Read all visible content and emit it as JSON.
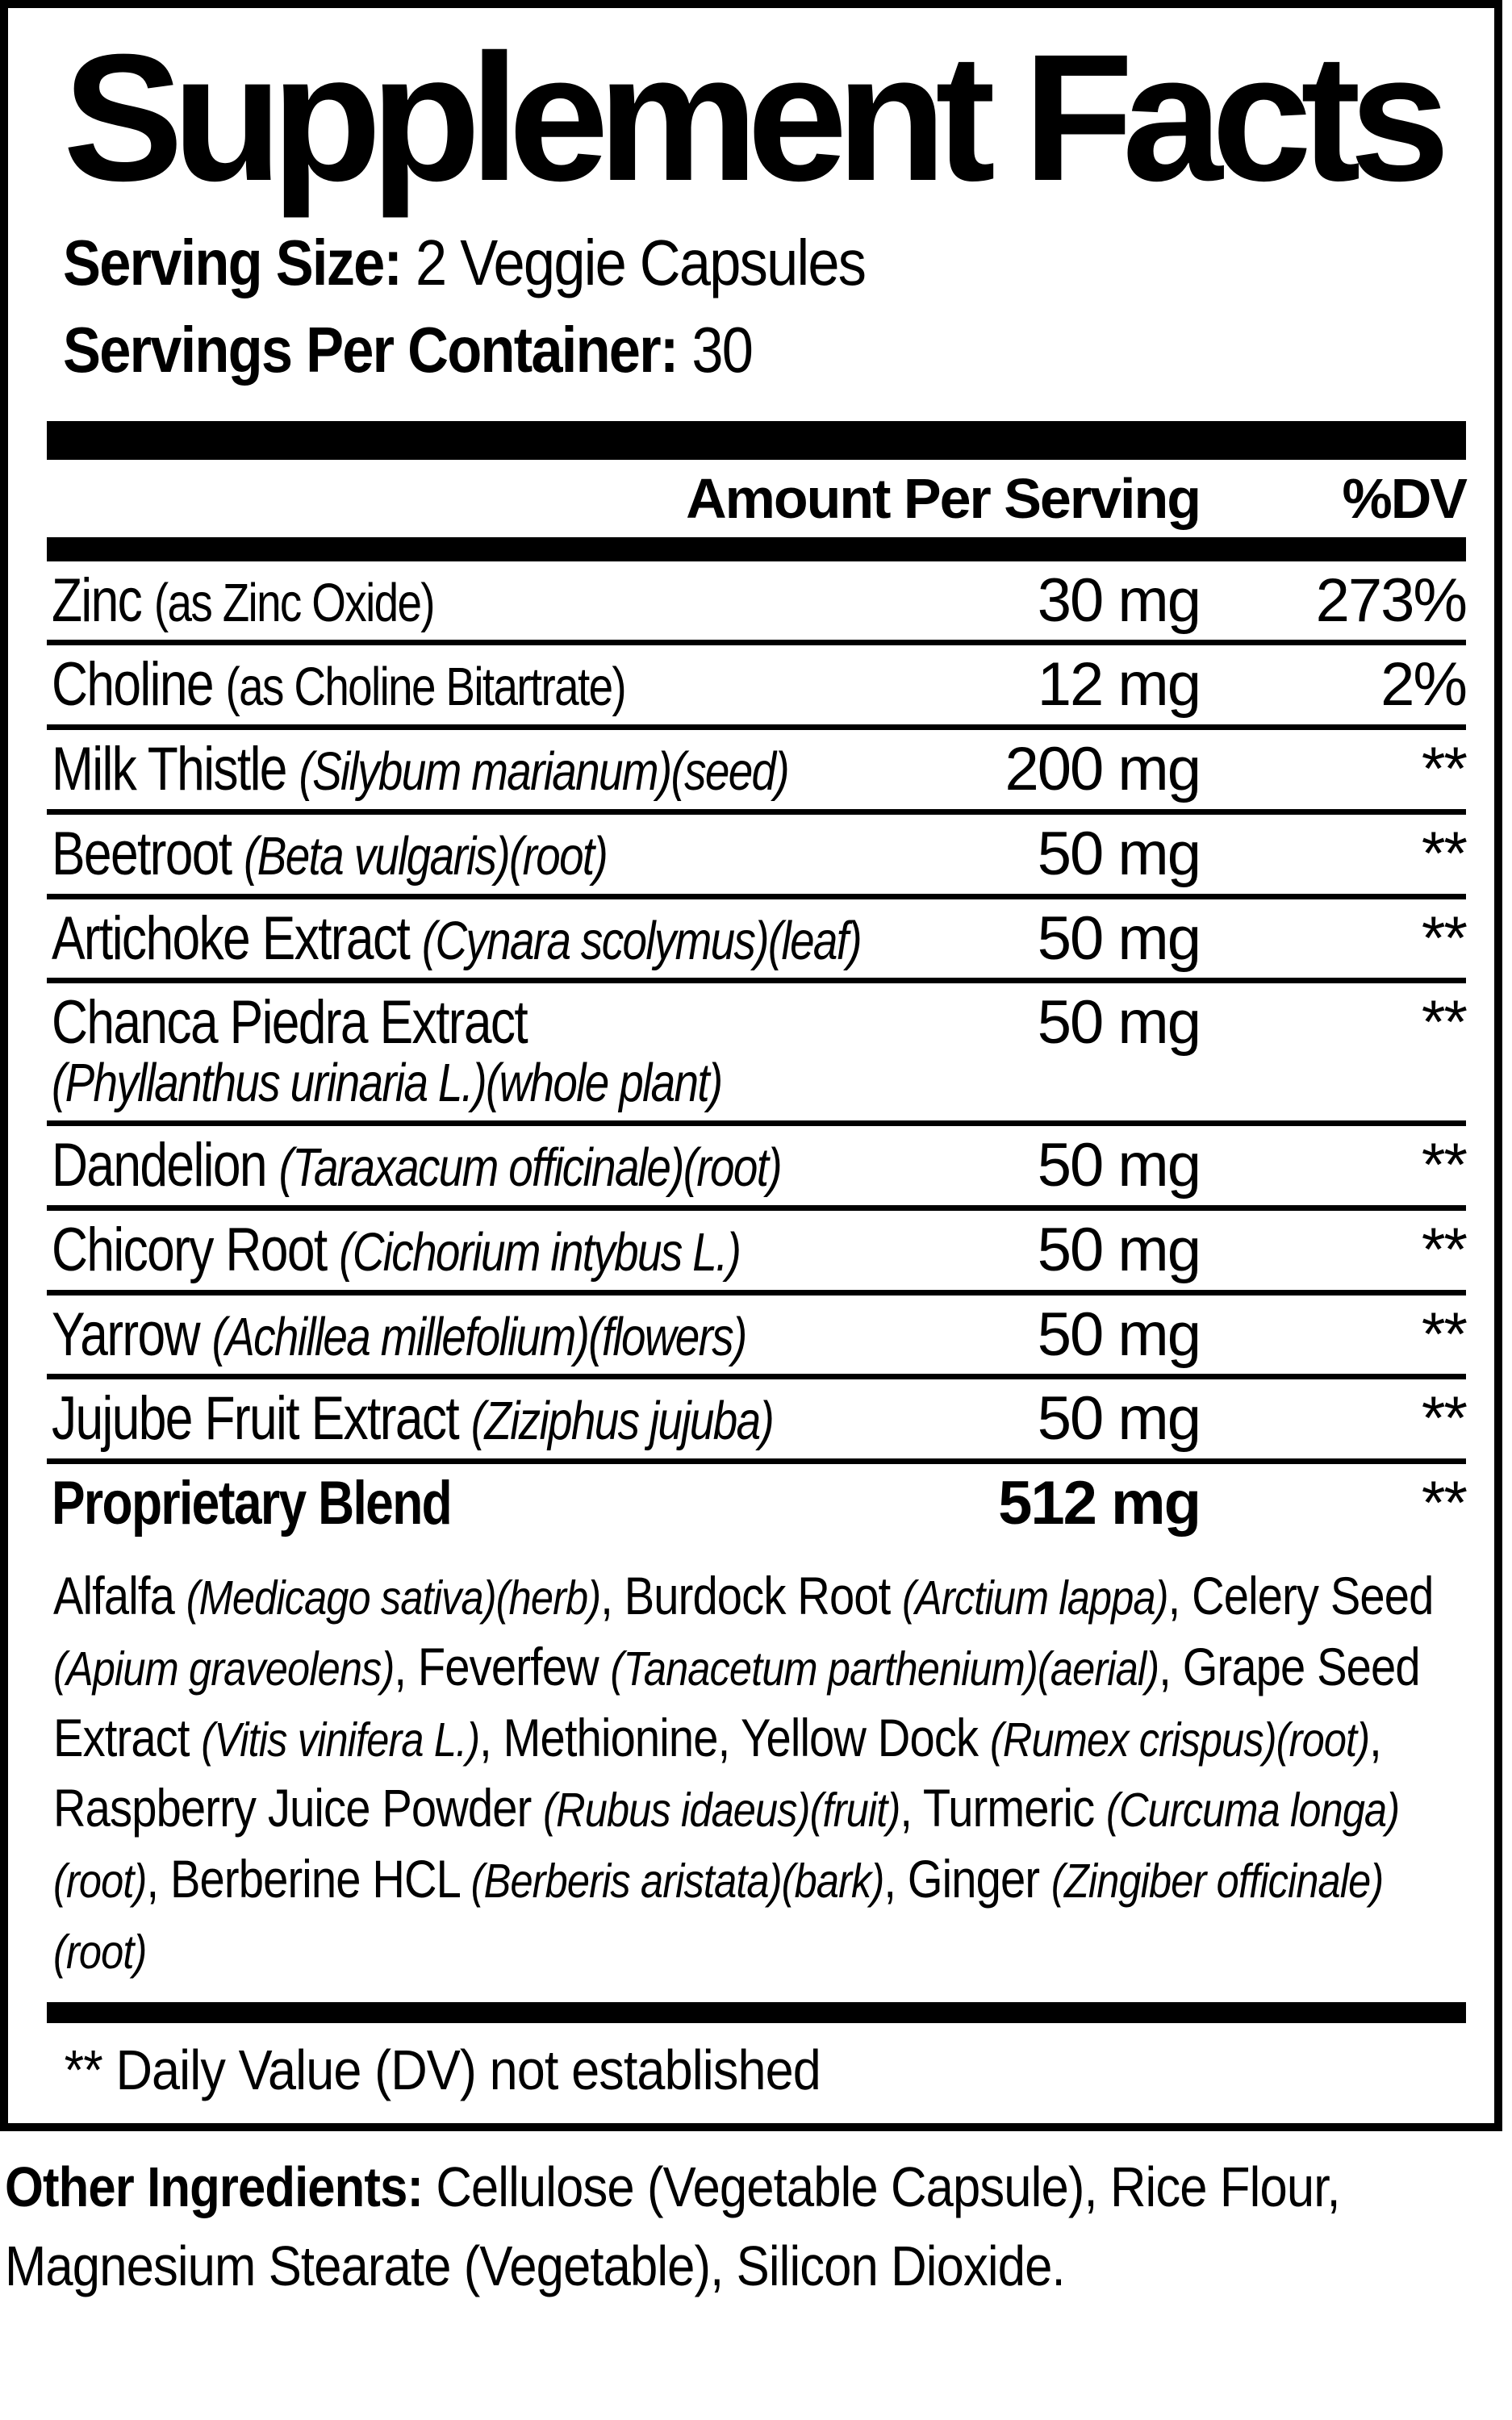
{
  "colors": {
    "ink": "#000000",
    "paper": "#ffffff"
  },
  "title": "Supplement Facts",
  "serving": {
    "size_label": "Serving Size:",
    "size_value": "2 Veggie Capsules",
    "servings_label": "Servings Per Container:",
    "servings_value": "30"
  },
  "columns": {
    "amount": "Amount Per Serving",
    "dv": "%DV"
  },
  "rows": [
    {
      "name": "Zinc",
      "latin": "(as Zinc Oxide)",
      "latin_italic": false,
      "latin_block": "",
      "amount": "30 mg",
      "dv": "273%",
      "bold": false
    },
    {
      "name": "Choline",
      "latin": "(as Choline Bitartrate)",
      "latin_italic": false,
      "latin_block": "",
      "amount": "12 mg",
      "dv": "2%",
      "bold": false
    },
    {
      "name": "Milk Thistle",
      "latin": "(Silybum marianum)(seed)",
      "latin_italic": true,
      "latin_block": "",
      "amount": "200 mg",
      "dv": "**",
      "bold": false
    },
    {
      "name": "Beetroot",
      "latin": "(Beta vulgaris)(root)",
      "latin_italic": true,
      "latin_block": "",
      "amount": "50 mg",
      "dv": "**",
      "bold": false
    },
    {
      "name": "Artichoke Extract",
      "latin": "(Cynara scolymus)(leaf)",
      "latin_italic": true,
      "latin_block": "",
      "amount": "50 mg",
      "dv": "**",
      "bold": false
    },
    {
      "name": "Chanca Piedra Extract",
      "latin": "",
      "latin_italic": true,
      "latin_block": "(Phyllanthus urinaria L.)(whole plant)",
      "amount": "50 mg",
      "dv": "**",
      "bold": false
    },
    {
      "name": "Dandelion",
      "latin": "(Taraxacum officinale)(root)",
      "latin_italic": true,
      "latin_block": "",
      "amount": "50 mg",
      "dv": "**",
      "bold": false
    },
    {
      "name": "Chicory Root",
      "latin": "(Cichorium intybus L.)",
      "latin_italic": true,
      "latin_block": "",
      "amount": "50 mg",
      "dv": "**",
      "bold": false
    },
    {
      "name": "Yarrow",
      "latin": "(Achillea millefolium)(flowers)",
      "latin_italic": true,
      "latin_block": "",
      "amount": "50 mg",
      "dv": "**",
      "bold": false
    },
    {
      "name": "Jujube Fruit Extract",
      "latin": "(Ziziphus jujuba)",
      "latin_italic": true,
      "latin_block": "",
      "amount": "50 mg",
      "dv": "**",
      "bold": false
    },
    {
      "name": "Proprietary Blend",
      "latin": "",
      "latin_italic": false,
      "latin_block": "",
      "amount": "512 mg",
      "dv": "**",
      "bold": true
    }
  ],
  "blend_segments": [
    {
      "t": "Alfalfa ",
      "i": false
    },
    {
      "t": "(Medicago sativa)(herb)",
      "i": true
    },
    {
      "t": ", Burdock Root ",
      "i": false
    },
    {
      "t": "(Arctium lappa)",
      "i": true
    },
    {
      "t": ", Celery Seed ",
      "i": false
    },
    {
      "t": "(Apium graveolens)",
      "i": true
    },
    {
      "t": ", Feverfew ",
      "i": false
    },
    {
      "t": "(Tanacetum parthenium)(aerial)",
      "i": true
    },
    {
      "t": ", Grape Seed Extract ",
      "i": false
    },
    {
      "t": "(Vitis vinifera L.)",
      "i": true
    },
    {
      "t": ", Methionine, Yellow Dock ",
      "i": false
    },
    {
      "t": "(Rumex crispus)(root)",
      "i": true
    },
    {
      "t": ", Raspberry Juice Powder ",
      "i": false
    },
    {
      "t": "(Rubus idaeus)(fruit)",
      "i": true
    },
    {
      "t": ", Turmeric ",
      "i": false
    },
    {
      "t": "(Curcuma longa)(root)",
      "i": true
    },
    {
      "t": ", Berberine HCL ",
      "i": false
    },
    {
      "t": "(Berberis aristata)(bark)",
      "i": true
    },
    {
      "t": ", Ginger ",
      "i": false
    },
    {
      "t": "(Zingiber officinale)(root)",
      "i": true
    }
  ],
  "footnote": "** Daily Value (DV) not established",
  "other": {
    "label": "Other Ingredients:",
    "value": "Cellulose (Vegetable Capsule), Rice Flour, Magnesium Stearate (Vegetable), Silicon Dioxide."
  }
}
